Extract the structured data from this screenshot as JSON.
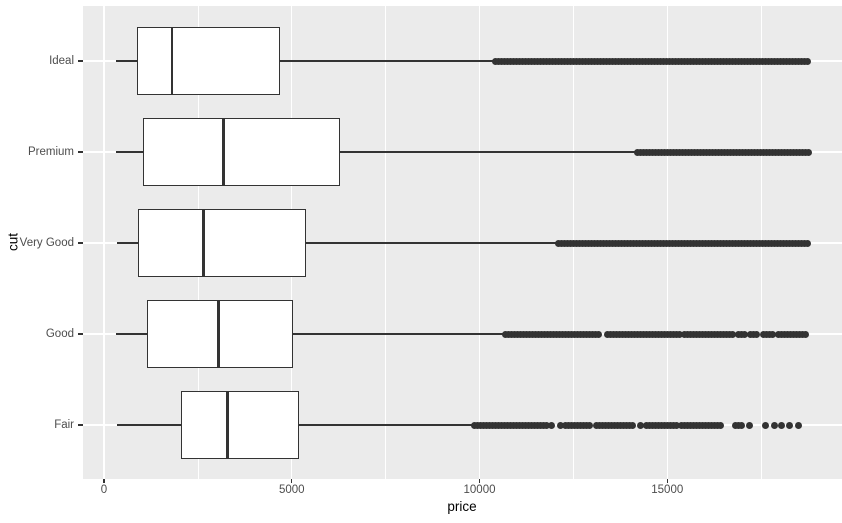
{
  "colors": {
    "panel_background": "#EBEBEB",
    "gridline": "#FFFFFF",
    "box_stroke": "#333333",
    "outlier_dot": "#333333",
    "tick_text": "#4D4D4D",
    "axis_title_text": "#000000"
  },
  "chart_data": {
    "type": "boxplot",
    "orientation": "horizontal",
    "title": "",
    "xlabel": "price",
    "ylabel": "cut",
    "xlim": [
      -560,
      19640
    ],
    "x_major_ticks": [
      0,
      5000,
      10000,
      15000
    ],
    "x_major_tick_labels": [
      "0",
      "5000",
      "10000",
      "15000"
    ],
    "x_minor_ticks": [
      2500,
      7500,
      12500,
      17500
    ],
    "grid": "on",
    "legend": "none",
    "categories": [
      "Ideal",
      "Premium",
      "Very Good",
      "Good",
      "Fair"
    ],
    "series": [
      {
        "cut": "Ideal",
        "min": 326,
        "q1": 878,
        "median": 1810,
        "q3": 4679,
        "whisker_high": 10350,
        "outlier_clusters": [
          [
            10430,
            18806
          ]
        ]
      },
      {
        "cut": "Premium",
        "min": 326,
        "q1": 1046,
        "median": 3185,
        "q3": 6296,
        "whisker_high": 14140,
        "outlier_clusters": [
          [
            14210,
            18823
          ]
        ]
      },
      {
        "cut": "Very Good",
        "min": 336,
        "q1": 912,
        "median": 2648,
        "q3": 5373,
        "whisker_high": 12030,
        "outlier_clusters": [
          [
            12110,
            18818
          ]
        ]
      },
      {
        "cut": "Good",
        "min": 327,
        "q1": 1145,
        "median": 3050,
        "q3": 5028,
        "whisker_high": 10820,
        "outlier_clusters": [
          [
            10700,
            13250
          ],
          [
            13400,
            15320
          ],
          [
            15450,
            16750
          ],
          [
            16900,
            17080
          ],
          [
            17230,
            17400
          ],
          [
            17550,
            17820
          ],
          [
            17960,
            18700
          ]
        ]
      },
      {
        "cut": "Fair",
        "min": 337,
        "q1": 2050,
        "median": 3282,
        "q3": 5206,
        "whisker_high": 9900,
        "outlier_clusters": [
          [
            9870,
            11800
          ],
          [
            11900,
            11960
          ],
          [
            12140,
            12200
          ],
          [
            12280,
            12940
          ],
          [
            13120,
            13840
          ],
          [
            13920,
            14100
          ],
          [
            14260,
            14320
          ],
          [
            14450,
            15320
          ],
          [
            15370,
            16030
          ],
          [
            16110,
            16430
          ],
          [
            16830,
            17010
          ],
          [
            17170,
            17230
          ],
          [
            17570,
            17640
          ],
          [
            17810,
            17880
          ],
          [
            18020,
            18090
          ],
          [
            18230,
            18300
          ],
          [
            18470,
            18540
          ]
        ]
      }
    ]
  }
}
